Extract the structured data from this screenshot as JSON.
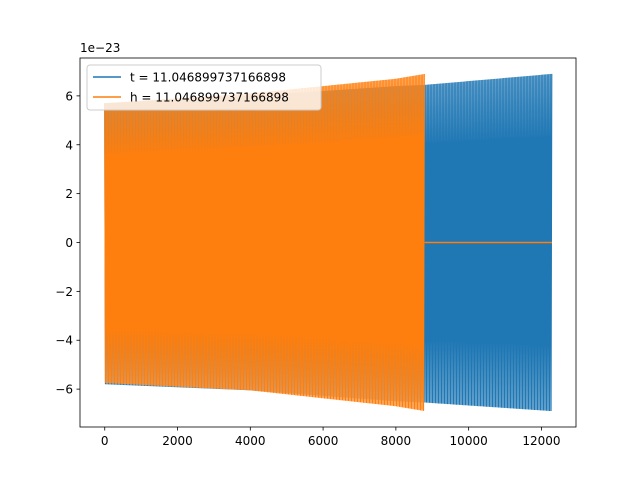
{
  "chart_data": {
    "type": "line",
    "title": "",
    "xlabel": "",
    "ylabel": "",
    "offset_text": "1e−23",
    "xlim": [
      -680,
      12950
    ],
    "ylim": [
      -7.55,
      7.55
    ],
    "xticks": [
      0,
      2000,
      4000,
      6000,
      8000,
      10000,
      12000
    ],
    "xtick_labels": [
      "0",
      "2000",
      "4000",
      "6000",
      "8000",
      "10000",
      "12000"
    ],
    "yticks": [
      -6,
      -4,
      -2,
      0,
      2,
      4,
      6
    ],
    "ytick_labels": [
      "−6",
      "−4",
      "−2",
      "0",
      "2",
      "4",
      "6"
    ],
    "grid": false,
    "legend_position": "upper-left",
    "scale_factor": 1e-23,
    "series": [
      {
        "name": "t = 11.046899737166898",
        "color": "#1f77b4",
        "style": "oscillation",
        "x_range": [
          0,
          12290
        ],
        "envelope": [
          [
            0,
            5.7
          ],
          [
            4000,
            6.0
          ],
          [
            8000,
            6.4
          ],
          [
            8800,
            6.45
          ],
          [
            12290,
            6.9
          ]
        ],
        "lower_envelope": [
          [
            0,
            -5.8
          ],
          [
            4000,
            -6.05
          ],
          [
            8000,
            -6.5
          ],
          [
            8800,
            -6.55
          ],
          [
            12290,
            -6.9
          ]
        ]
      },
      {
        "name": "h = 11.046899737166898",
        "color": "#ff7f0e",
        "style": "oscillation",
        "x_range": [
          0,
          8790
        ],
        "envelope": [
          [
            0,
            5.7
          ],
          [
            4000,
            6.1
          ],
          [
            8000,
            6.7
          ],
          [
            8790,
            6.9
          ]
        ],
        "lower_envelope": [
          [
            0,
            -5.75
          ],
          [
            4000,
            -6.05
          ],
          [
            8000,
            -6.7
          ],
          [
            8790,
            -6.9
          ]
        ],
        "tail": {
          "x_range": [
            8790,
            12290
          ],
          "y": 0
        }
      }
    ]
  }
}
